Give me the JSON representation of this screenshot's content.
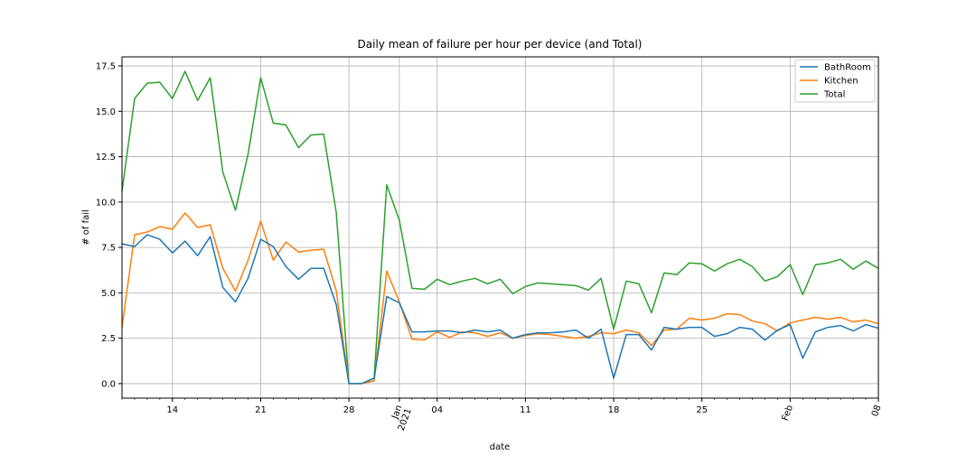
{
  "chart_data": {
    "type": "line",
    "title": "Daily mean of failure per hour per device (and Total)",
    "xlabel": "date",
    "ylabel": "# of fail",
    "x_start": "2020-12-10",
    "x_end": "2021-02-08",
    "ylim": [
      -0.8,
      18.0
    ],
    "yticks": [
      "0.0",
      "2.5",
      "5.0",
      "7.5",
      "10.0",
      "12.5",
      "15.0",
      "17.5"
    ],
    "ytick_values": [
      0,
      2.5,
      5,
      7.5,
      10,
      12.5,
      15,
      17.5
    ],
    "major_xticks": [
      {
        "date": "2020-12-14",
        "label": "14"
      },
      {
        "date": "2020-12-21",
        "label": "21"
      },
      {
        "date": "2020-12-28",
        "label": "28"
      },
      {
        "date": "2021-01-01",
        "label": "Jan",
        "label2": "2021",
        "rotated": true
      },
      {
        "date": "2021-01-04",
        "label": "04"
      },
      {
        "date": "2021-01-11",
        "label": "11"
      },
      {
        "date": "2021-01-18",
        "label": "18"
      },
      {
        "date": "2021-01-25",
        "label": "25"
      },
      {
        "date": "2021-02-01",
        "label": "Feb",
        "rotated": true
      },
      {
        "date": "2021-02-08",
        "label": "08",
        "rotated": true
      }
    ],
    "grid": true,
    "legend_position": "top-right",
    "series": [
      {
        "name": "BathRoom",
        "color": "#1f77b4",
        "values": [
          7.7,
          7.55,
          8.2,
          7.95,
          7.2,
          7.85,
          7.05,
          8.1,
          5.3,
          4.5,
          5.8,
          7.95,
          7.55,
          6.45,
          5.75,
          6.35,
          6.35,
          4.35,
          0.0,
          0.0,
          0.3,
          4.8,
          4.45,
          2.85,
          2.85,
          2.9,
          2.9,
          2.8,
          2.95,
          2.85,
          2.95,
          2.5,
          2.7,
          2.8,
          2.8,
          2.85,
          2.95,
          2.5,
          3.0,
          0.3,
          2.7,
          2.7,
          1.85,
          3.1,
          3.0,
          3.1,
          3.1,
          2.6,
          2.75,
          3.1,
          3.0,
          2.4,
          2.95,
          3.25,
          1.4,
          2.85,
          3.1,
          3.2,
          2.9,
          3.25,
          3.05
        ]
      },
      {
        "name": "Kitchen",
        "color": "#ff7f0e",
        "values": [
          3.1,
          8.2,
          8.35,
          8.65,
          8.5,
          9.4,
          8.6,
          8.75,
          6.35,
          5.1,
          6.8,
          8.95,
          6.8,
          7.8,
          7.25,
          7.35,
          7.4,
          5.1,
          0.0,
          0.0,
          0.15,
          6.2,
          4.5,
          2.45,
          2.4,
          2.85,
          2.55,
          2.85,
          2.8,
          2.6,
          2.8,
          2.5,
          2.65,
          2.75,
          2.7,
          2.6,
          2.5,
          2.6,
          2.8,
          2.75,
          2.95,
          2.8,
          2.1,
          2.95,
          3.0,
          3.6,
          3.5,
          3.6,
          3.85,
          3.8,
          3.45,
          3.3,
          2.9,
          3.35,
          3.5,
          3.65,
          3.55,
          3.65,
          3.4,
          3.5,
          3.3
        ]
      },
      {
        "name": "Total",
        "color": "#2ca02c",
        "values": [
          10.6,
          15.7,
          16.55,
          16.6,
          15.7,
          17.2,
          15.6,
          16.85,
          11.65,
          9.55,
          12.65,
          16.85,
          14.35,
          14.25,
          13.0,
          13.7,
          13.75,
          9.4,
          0.0,
          0.0,
          0.3,
          10.95,
          9.0,
          5.25,
          5.2,
          5.75,
          5.45,
          5.65,
          5.8,
          5.5,
          5.75,
          4.95,
          5.35,
          5.55,
          5.5,
          5.45,
          5.4,
          5.15,
          5.8,
          3.0,
          5.65,
          5.5,
          3.9,
          6.1,
          6.0,
          6.65,
          6.6,
          6.2,
          6.6,
          6.85,
          6.45,
          5.65,
          5.9,
          6.55,
          4.9,
          6.55,
          6.65,
          6.85,
          6.3,
          6.75,
          6.35
        ]
      }
    ]
  }
}
